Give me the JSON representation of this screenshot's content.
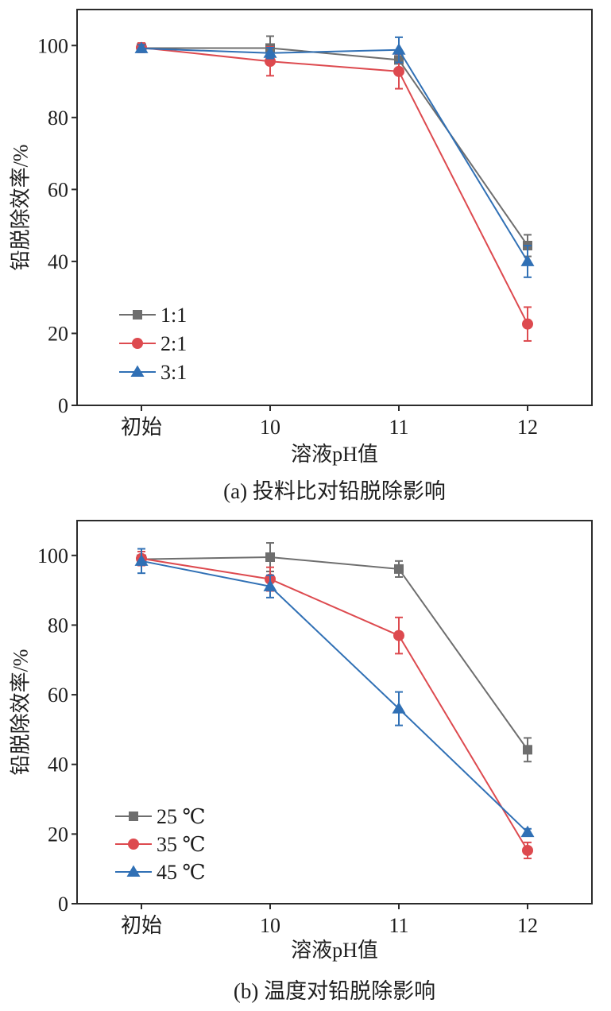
{
  "chart_data": [
    {
      "type": "line",
      "title": "",
      "caption": "(a) 投料比对铅脱除影响",
      "xlabel": "溶液pH值",
      "ylabel": "铅脱除效率/%",
      "categories": [
        "初始",
        "10",
        "11",
        "12"
      ],
      "ylim": [
        0,
        110
      ],
      "yticks": [
        0,
        20,
        40,
        60,
        80,
        100
      ],
      "grid": false,
      "legend_position": "bottom-left",
      "series": [
        {
          "name": "1:1",
          "color": "#6e6e6e",
          "marker": "square",
          "values": [
            99.3,
            99.3,
            96.0,
            44.4
          ],
          "error": [
            1.0,
            3.3,
            2.5,
            3.0
          ]
        },
        {
          "name": "2:1",
          "color": "#dd4a4f",
          "marker": "circle",
          "values": [
            99.4,
            95.6,
            92.8,
            22.6
          ],
          "error": [
            1.3,
            4.0,
            4.8,
            4.7
          ]
        },
        {
          "name": "3:1",
          "color": "#3070b5",
          "marker": "triangle",
          "values": [
            99.2,
            97.9,
            98.8,
            40.0
          ],
          "error": [
            1.0,
            1.5,
            3.5,
            4.4
          ]
        }
      ]
    },
    {
      "type": "line",
      "title": "",
      "caption": "(b) 温度对铅脱除影响",
      "xlabel": "溶液pH值",
      "ylabel": "铅脱除效率/%",
      "categories": [
        "初始",
        "10",
        "11",
        "12"
      ],
      "ylim": [
        0,
        110
      ],
      "yticks": [
        0,
        20,
        40,
        60,
        80,
        100
      ],
      "grid": false,
      "legend_position": "bottom-left",
      "series": [
        {
          "name": "25 ℃",
          "color": "#6e6e6e",
          "marker": "square",
          "values": [
            98.9,
            99.5,
            96.1,
            44.2
          ],
          "error": [
            1.0,
            4.1,
            2.3,
            3.4
          ]
        },
        {
          "name": "35 ℃",
          "color": "#dd4a4f",
          "marker": "circle",
          "values": [
            99.1,
            93.2,
            77.0,
            15.3
          ],
          "error": [
            2.0,
            3.4,
            5.2,
            2.3
          ]
        },
        {
          "name": "45 ℃",
          "color": "#3070b5",
          "marker": "triangle",
          "values": [
            98.4,
            91.1,
            56.0,
            20.5
          ],
          "error": [
            3.5,
            3.2,
            4.8,
            1.0
          ]
        }
      ]
    }
  ]
}
